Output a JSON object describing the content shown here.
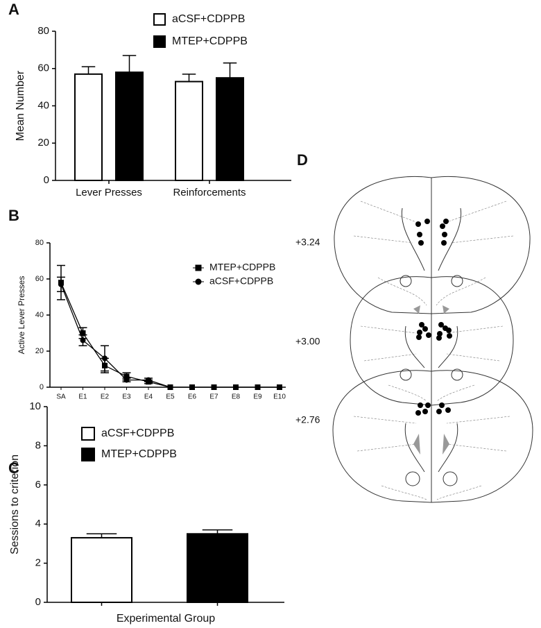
{
  "chart_data": [
    {
      "type": "bar",
      "panel": "A",
      "ylabel": "Mean Number",
      "categories": [
        "Lever Presses",
        "Reinforcements"
      ],
      "series": [
        {
          "name": "aCSF+CDPPB",
          "color": "#ffffff",
          "values": [
            57,
            53
          ],
          "errors": [
            4,
            4
          ]
        },
        {
          "name": "MTEP+CDPPB",
          "color": "#000000",
          "values": [
            58,
            55
          ],
          "errors": [
            9,
            8
          ]
        }
      ],
      "ylim": [
        0,
        80
      ],
      "yticks": [
        0,
        20,
        40,
        60,
        80
      ]
    },
    {
      "type": "line",
      "panel": "B",
      "ylabel": "Active Lever Presses",
      "categories": [
        "SA",
        "E1",
        "E2",
        "E3",
        "E4",
        "E5",
        "E6",
        "E7",
        "E8",
        "E9",
        "E10"
      ],
      "series": [
        {
          "name": "MTEP+CDPPB",
          "color": "#000000",
          "marker": "square",
          "values": [
            58,
            30,
            12,
            6,
            3,
            0,
            0,
            0,
            0,
            0,
            0
          ],
          "errors": [
            9.5,
            3,
            4,
            2,
            1,
            0,
            0,
            0,
            0,
            0,
            0
          ]
        },
        {
          "name": "aCSF+CDPPB",
          "color": "#000000",
          "marker": "circle",
          "values": [
            57,
            26,
            16,
            4,
            4,
            0,
            0,
            0,
            0,
            0,
            0
          ],
          "errors": [
            4,
            3,
            7,
            1,
            1,
            0,
            0,
            0,
            0,
            0,
            0
          ]
        }
      ],
      "ylim": [
        0,
        80
      ],
      "yticks": [
        0,
        20,
        40,
        60,
        80
      ]
    },
    {
      "type": "bar",
      "panel": "C",
      "ylabel": "Sessions to criterion",
      "xlabel": "Experimental Group",
      "categories": [
        null
      ],
      "series": [
        {
          "name": "aCSF+CDPPB",
          "color": "#ffffff",
          "values": [
            3.3
          ],
          "errors": [
            0.2
          ]
        },
        {
          "name": "MTEP+CDPPB",
          "color": "#000000",
          "values": [
            3.5
          ],
          "errors": [
            0.2
          ]
        }
      ],
      "ylim": [
        0,
        10
      ],
      "yticks": [
        0,
        2,
        4,
        6,
        8,
        10
      ]
    }
  ],
  "diagram": {
    "panel": "D",
    "sections": [
      "+3.24",
      "+3.00",
      "+2.76"
    ]
  }
}
